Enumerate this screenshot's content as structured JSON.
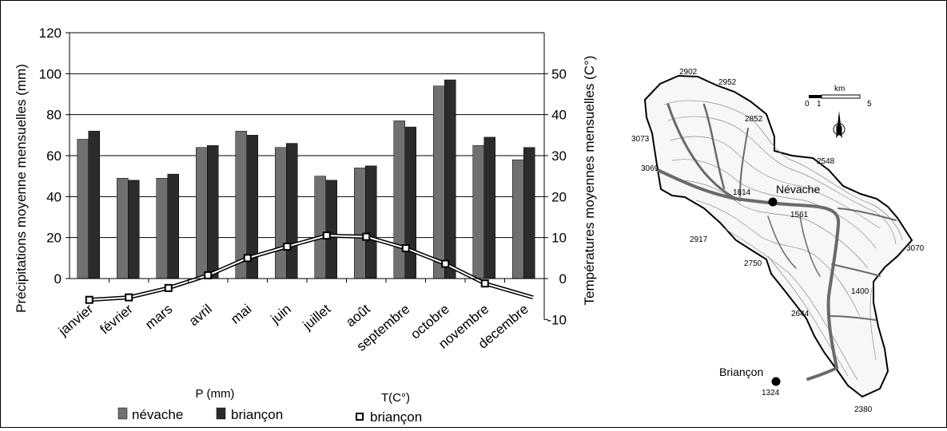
{
  "colors": {
    "nevache": "#707070",
    "briancon": "#2b2b2b",
    "temp_line": "#000000",
    "marker_fill": "#ffffff",
    "gridline": "#000000"
  },
  "chart_data": {
    "type": "bar",
    "categories": [
      "janvier",
      "février",
      "mars",
      "avril",
      "mai",
      "juin",
      "juillet",
      "août",
      "septembre",
      "octobre",
      "novembre",
      "decembre"
    ],
    "series": [
      {
        "name": "névache",
        "axis": "left",
        "type": "bar",
        "values": [
          68,
          49,
          49,
          64,
          72,
          64,
          50,
          54,
          77,
          94,
          65,
          58
        ]
      },
      {
        "name": "briançon",
        "axis": "left",
        "type": "bar",
        "values": [
          72,
          48,
          51,
          65,
          70,
          66,
          48,
          55,
          74,
          97,
          69,
          64
        ]
      },
      {
        "name": "briançon",
        "axis": "right",
        "type": "line",
        "values": [
          -5.2,
          -4.6,
          -2.3,
          0.8,
          5.0,
          7.8,
          10.5,
          10.2,
          7.4,
          3.6,
          -1.2,
          -4.0
        ]
      }
    ],
    "ylabel": "Précipitations moyenne mensuelles (mm)",
    "y2label": "Températures moyennes mensuelles (C°)",
    "ylim": [
      0,
      120
    ],
    "yticks": [
      0,
      20,
      40,
      60,
      80,
      100,
      120
    ],
    "y2lim": [
      -10,
      60
    ],
    "y2ticks": [
      -10,
      0,
      10,
      20,
      30,
      40,
      50
    ],
    "grid": true,
    "legend": {
      "precip_title": "P (mm)",
      "temp_title": "T(C°)",
      "entries": [
        "névache",
        "briançon",
        "briançon"
      ],
      "placement": "bottom"
    }
  },
  "map": {
    "towns": [
      {
        "name": "Névache",
        "altitude": ""
      },
      {
        "name": "Briançon",
        "altitude": "1324"
      }
    ],
    "elevations": [
      "2902",
      "2952",
      "2852",
      "3073",
      "3069",
      "2548",
      "1814",
      "1561",
      "2917",
      "2750",
      "3070",
      "1400",
      "2644",
      "2380"
    ],
    "scale": {
      "unit": "km",
      "ticks": [
        "0",
        "1",
        "5"
      ]
    },
    "north_icon": "compass-north-icon"
  }
}
